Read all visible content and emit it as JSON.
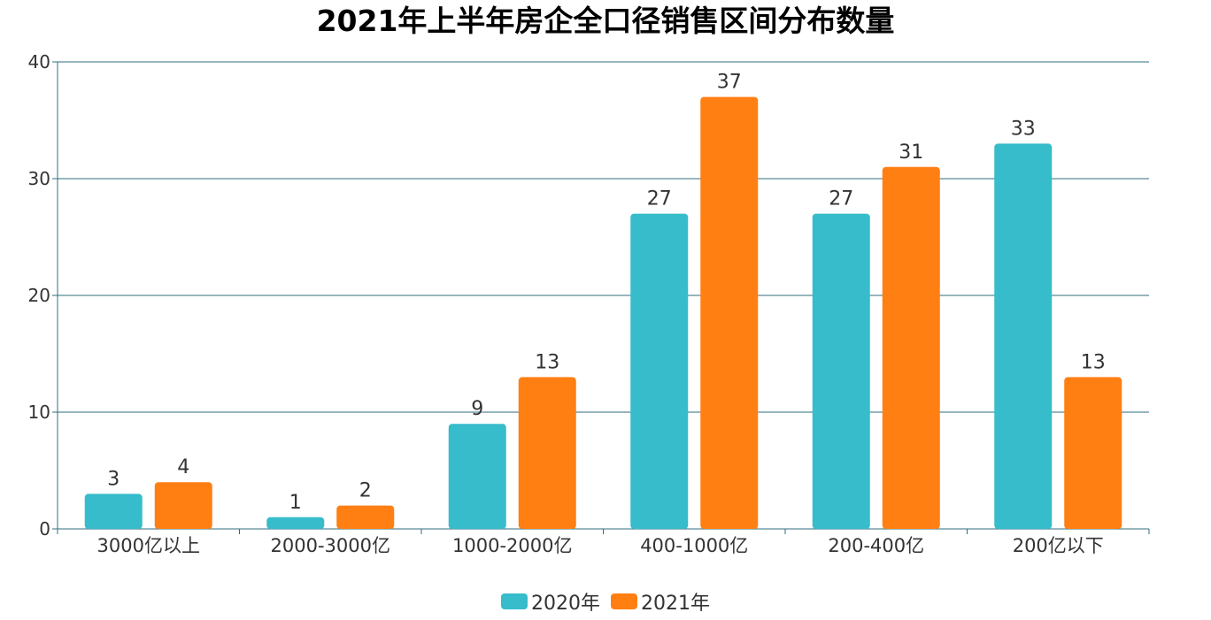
{
  "chart_data": {
    "type": "bar",
    "title": "2021年上半年房企全口径销售区间分布数量",
    "xlabel": "",
    "ylabel": "",
    "categories": [
      "3000亿以上",
      "2000-3000亿",
      "1000-2000亿",
      "400-1000亿",
      "200-400亿",
      "200亿以下"
    ],
    "series": [
      {
        "name": "2020年",
        "values": [
          3,
          1,
          9,
          27,
          27,
          33
        ],
        "color": "#36BCCB"
      },
      {
        "name": "2021年",
        "values": [
          4,
          2,
          13,
          37,
          31,
          13
        ],
        "color": "#FF7F13"
      }
    ],
    "ylim": [
      0,
      40
    ],
    "yticks": [
      0,
      10,
      20,
      30,
      40
    ],
    "grid": true,
    "legend_position": "bottom-center",
    "data_labels": true,
    "axis_color": "#2F6E7E"
  }
}
